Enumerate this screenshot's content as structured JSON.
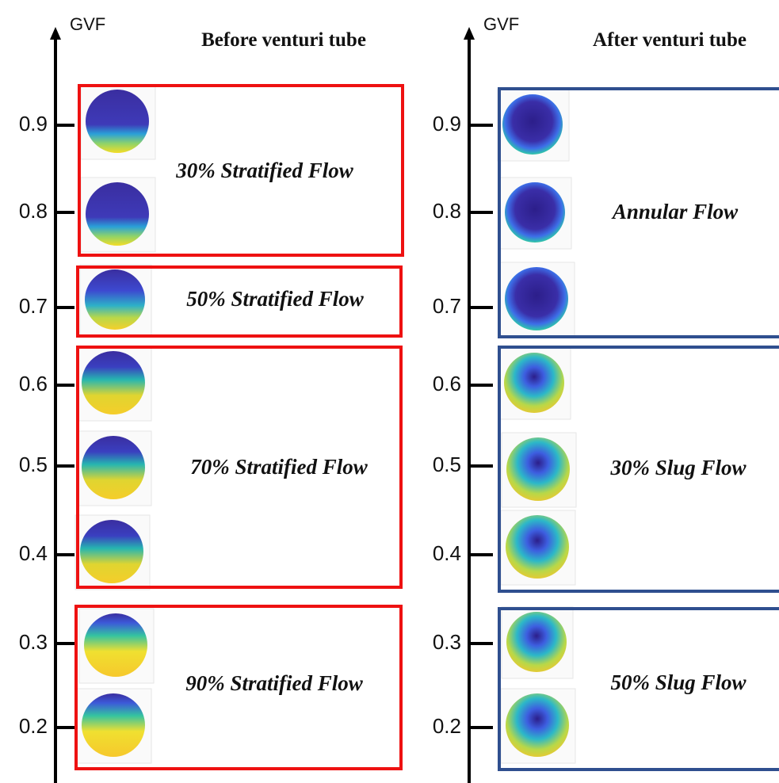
{
  "panels": [
    {
      "axis_label": "GVF",
      "title": "Before venturi tube",
      "ticks": [
        "0.9",
        "0.8",
        "0.7",
        "0.6",
        "0.5",
        "0.4",
        "0.3",
        "0.2"
      ],
      "groups": [
        "30% Stratified Flow",
        "50% Stratified Flow",
        "70% Stratified Flow",
        "90% Stratified Flow"
      ]
    },
    {
      "axis_label": "GVF",
      "title": "After venturi tube",
      "ticks": [
        "0.9",
        "0.8",
        "0.7",
        "0.6",
        "0.5",
        "0.4",
        "0.3",
        "0.2"
      ],
      "groups": [
        "Annular Flow",
        "30% Slug Flow",
        "50% Slug Flow"
      ]
    }
  ]
}
